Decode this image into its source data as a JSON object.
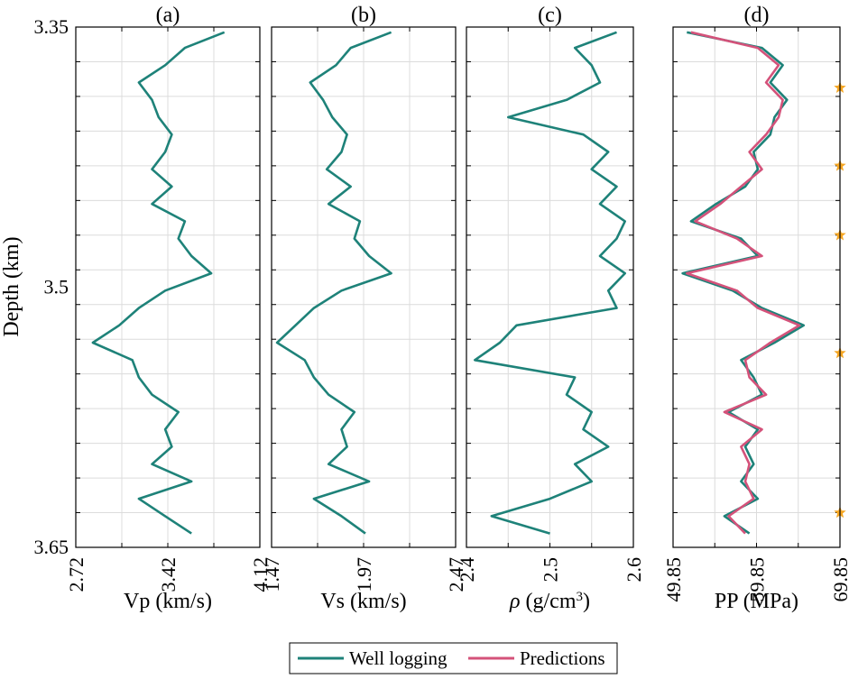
{
  "chart_data": {
    "type": "line",
    "depth_axis": {
      "label": "Depth (km)",
      "ylim": [
        3.35,
        3.65
      ],
      "tick_values": [
        3.35,
        3.5,
        3.65
      ],
      "tick_labels": [
        "3.35",
        "3.5",
        "3.65"
      ],
      "grid_step": 0.02,
      "direction": "increasing downward"
    },
    "panels": [
      {
        "id": "a",
        "title": "(a)",
        "xlabel": "Vp (km/s)",
        "xlim": [
          2.72,
          4.12
        ],
        "xtick_values": [
          2.72,
          3.42,
          4.12
        ],
        "xtick_labels": [
          "2.72",
          "3.42",
          "4.12"
        ],
        "xgrid_values": [
          3.07,
          3.42,
          3.77
        ],
        "series": [
          {
            "name": "Well logging",
            "color": "#1e8279",
            "depth": [
              3.353,
              3.362,
              3.372,
              3.382,
              3.392,
              3.402,
              3.412,
              3.422,
              3.432,
              3.442,
              3.452,
              3.462,
              3.472,
              3.482,
              3.492,
              3.502,
              3.512,
              3.522,
              3.532,
              3.542,
              3.552,
              3.562,
              3.572,
              3.582,
              3.592,
              3.602,
              3.612,
              3.622,
              3.632,
              3.642
            ],
            "values": [
              3.85,
              3.55,
              3.4,
              3.2,
              3.3,
              3.35,
              3.45,
              3.4,
              3.3,
              3.45,
              3.3,
              3.55,
              3.5,
              3.6,
              3.75,
              3.4,
              3.2,
              3.05,
              2.85,
              3.15,
              3.2,
              3.3,
              3.5,
              3.4,
              3.45,
              3.3,
              3.6,
              3.2,
              3.4,
              3.6
            ]
          }
        ]
      },
      {
        "id": "b",
        "title": "(b)",
        "xlabel": "Vs (km/s)",
        "xlim": [
          1.47,
          2.47
        ],
        "xtick_values": [
          1.47,
          1.97,
          2.47
        ],
        "xtick_labels": [
          "1.47",
          "1.97",
          "2.47"
        ],
        "xgrid_values": [
          1.72,
          1.97,
          2.22
        ],
        "series": [
          {
            "name": "Well logging",
            "color": "#1e8279",
            "depth": [
              3.353,
              3.362,
              3.372,
              3.382,
              3.392,
              3.402,
              3.412,
              3.422,
              3.432,
              3.442,
              3.452,
              3.462,
              3.472,
              3.482,
              3.492,
              3.502,
              3.512,
              3.522,
              3.532,
              3.542,
              3.552,
              3.562,
              3.572,
              3.582,
              3.592,
              3.602,
              3.612,
              3.622,
              3.632,
              3.642
            ],
            "values": [
              2.12,
              1.9,
              1.82,
              1.68,
              1.75,
              1.8,
              1.88,
              1.85,
              1.77,
              1.9,
              1.78,
              1.95,
              1.92,
              2.0,
              2.12,
              1.85,
              1.7,
              1.6,
              1.5,
              1.65,
              1.7,
              1.78,
              1.92,
              1.85,
              1.88,
              1.78,
              2.0,
              1.7,
              1.85,
              1.98
            ]
          }
        ]
      },
      {
        "id": "c",
        "title": "(c)",
        "xlabel": "ρ (g/cm³)",
        "xlabel_base": "ρ (g/cm",
        "xlabel_sup": "3",
        "xlabel_end": ")",
        "xlim": [
          2.4,
          2.6
        ],
        "xtick_values": [
          2.4,
          2.5,
          2.6
        ],
        "xtick_labels": [
          "2.4",
          "2.5",
          "2.6"
        ],
        "xgrid_values": [
          2.45,
          2.5,
          2.55
        ],
        "series": [
          {
            "name": "Well logging",
            "color": "#1e8279",
            "depth": [
              3.353,
              3.362,
              3.372,
              3.382,
              3.392,
              3.402,
              3.412,
              3.422,
              3.432,
              3.442,
              3.452,
              3.462,
              3.472,
              3.482,
              3.492,
              3.502,
              3.512,
              3.522,
              3.532,
              3.542,
              3.552,
              3.562,
              3.572,
              3.582,
              3.592,
              3.602,
              3.612,
              3.622,
              3.632,
              3.642
            ],
            "values": [
              2.58,
              2.53,
              2.55,
              2.56,
              2.52,
              2.45,
              2.54,
              2.57,
              2.55,
              2.58,
              2.56,
              2.59,
              2.58,
              2.56,
              2.59,
              2.57,
              2.58,
              2.46,
              2.44,
              2.41,
              2.53,
              2.52,
              2.55,
              2.54,
              2.57,
              2.53,
              2.55,
              2.5,
              2.43,
              2.5
            ]
          }
        ]
      },
      {
        "id": "d",
        "title": "(d)",
        "xlabel": "PP (MPa)",
        "xlim": [
          49.85,
          69.85
        ],
        "xtick_values": [
          49.85,
          59.85,
          69.85
        ],
        "xtick_labels": [
          "49.85",
          "59.85",
          "69.85"
        ],
        "xgrid_values": [
          54.85,
          59.85,
          64.85
        ],
        "series": [
          {
            "name": "Well logging",
            "color": "#1e8279",
            "depth": [
              3.353,
              3.362,
              3.372,
              3.382,
              3.392,
              3.402,
              3.412,
              3.422,
              3.432,
              3.442,
              3.452,
              3.462,
              3.472,
              3.482,
              3.492,
              3.502,
              3.512,
              3.522,
              3.532,
              3.542,
              3.552,
              3.562,
              3.572,
              3.582,
              3.592,
              3.602,
              3.612,
              3.622,
              3.632,
              3.642
            ],
            "values": [
              51.5,
              60.5,
              63.0,
              61.5,
              63.5,
              62.0,
              61.5,
              59.5,
              60.0,
              58.5,
              55.0,
              52.0,
              58.0,
              60.0,
              51.0,
              57.0,
              60.5,
              65.5,
              62.0,
              58.0,
              59.5,
              60.5,
              56.5,
              60.0,
              58.5,
              59.5,
              58.0,
              60.0,
              56.0,
              59.0
            ]
          },
          {
            "name": "Predictions",
            "color": "#d4527a",
            "depth": [
              3.353,
              3.362,
              3.372,
              3.382,
              3.392,
              3.402,
              3.412,
              3.422,
              3.432,
              3.442,
              3.452,
              3.462,
              3.472,
              3.482,
              3.492,
              3.502,
              3.512,
              3.522,
              3.532,
              3.542,
              3.552,
              3.562,
              3.572,
              3.582,
              3.592,
              3.602,
              3.612,
              3.622,
              3.632,
              3.642
            ],
            "values": [
              52.0,
              60.0,
              62.5,
              61.0,
              63.0,
              62.5,
              61.0,
              59.0,
              60.5,
              58.0,
              55.5,
              52.5,
              57.5,
              60.5,
              51.5,
              57.5,
              60.0,
              65.0,
              61.5,
              58.5,
              59.0,
              61.0,
              56.0,
              60.5,
              58.0,
              59.0,
              58.5,
              59.5,
              56.5,
              58.5
            ]
          }
        ],
        "star_markers": {
          "color": "#f5a623",
          "depths": [
            3.385,
            3.43,
            3.47,
            3.538,
            3.63
          ]
        }
      }
    ],
    "legend": {
      "placement": "bottom-center",
      "entries": [
        {
          "label": "Well logging",
          "color": "#1e8279"
        },
        {
          "label": "Predictions",
          "color": "#d4527a"
        }
      ]
    }
  }
}
